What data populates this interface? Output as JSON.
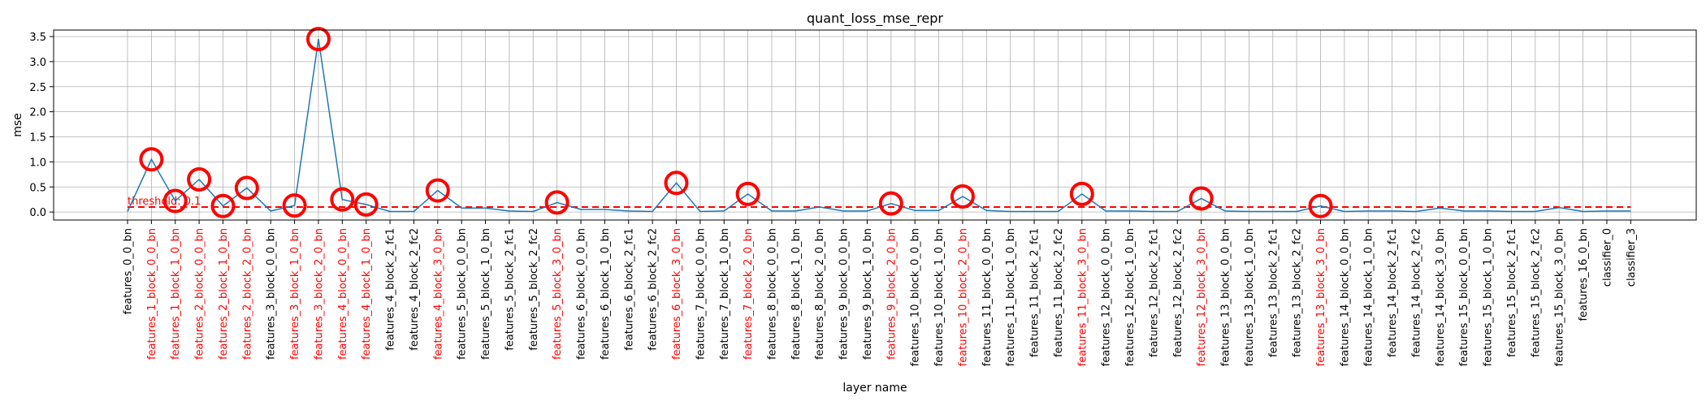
{
  "chart_data": {
    "type": "line",
    "title": "quant_loss_mse_repr",
    "xlabel": "layer name",
    "ylabel": "mse",
    "ylim": [
      -0.16,
      3.63
    ],
    "yticks": [
      0.0,
      0.5,
      1.0,
      1.5,
      2.0,
      2.5,
      3.0,
      3.5
    ],
    "ytick_labels": [
      "0.0",
      "0.5",
      "1.0",
      "1.5",
      "2.0",
      "2.5",
      "3.0",
      "3.5"
    ],
    "grid": true,
    "line_color": "#1f77b4",
    "highlight_color": "#ff0000",
    "threshold": {
      "value": 0.1,
      "label": "threshold: 0.1",
      "color": "#ff0000",
      "style": "dashed"
    },
    "categories": [
      "features_0_0_bn",
      "features_1_block_0_0_bn",
      "features_1_block_1_0_bn",
      "features_2_block_0_0_bn",
      "features_2_block_1_0_bn",
      "features_2_block_2_0_bn",
      "features_3_block_0_0_bn",
      "features_3_block_1_0_bn",
      "features_3_block_2_0_bn",
      "features_4_block_0_0_bn",
      "features_4_block_1_0_bn",
      "features_4_block_2_fc1",
      "features_4_block_2_fc2",
      "features_4_block_3_0_bn",
      "features_5_block_0_0_bn",
      "features_5_block_1_0_bn",
      "features_5_block_2_fc1",
      "features_5_block_2_fc2",
      "features_5_block_3_0_bn",
      "features_6_block_0_0_bn",
      "features_6_block_1_0_bn",
      "features_6_block_2_fc1",
      "features_6_block_2_fc2",
      "features_6_block_3_0_bn",
      "features_7_block_0_0_bn",
      "features_7_block_1_0_bn",
      "features_7_block_2_0_bn",
      "features_8_block_0_0_bn",
      "features_8_block_1_0_bn",
      "features_8_block_2_0_bn",
      "features_9_block_0_0_bn",
      "features_9_block_1_0_bn",
      "features_9_block_2_0_bn",
      "features_10_block_0_0_bn",
      "features_10_block_1_0_bn",
      "features_10_block_2_0_bn",
      "features_11_block_0_0_bn",
      "features_11_block_1_0_bn",
      "features_11_block_2_fc1",
      "features_11_block_2_fc2",
      "features_11_block_3_0_bn",
      "features_12_block_0_0_bn",
      "features_12_block_1_0_bn",
      "features_12_block_2_fc1",
      "features_12_block_2_fc2",
      "features_12_block_3_0_bn",
      "features_13_block_0_0_bn",
      "features_13_block_1_0_bn",
      "features_13_block_2_fc1",
      "features_13_block_2_fc2",
      "features_13_block_3_0_bn",
      "features_14_block_0_0_bn",
      "features_14_block_1_0_bn",
      "features_14_block_2_fc1",
      "features_14_block_2_fc2",
      "features_14_block_3_0_bn",
      "features_15_block_0_0_bn",
      "features_15_block_1_0_bn",
      "features_15_block_2_fc1",
      "features_15_block_2_fc2",
      "features_15_block_3_0_bn",
      "features_16_0_bn",
      "classifier_0",
      "classifier_3"
    ],
    "values": [
      0.01,
      1.05,
      0.22,
      0.65,
      0.12,
      0.48,
      0.02,
      0.13,
      3.45,
      0.25,
      0.15,
      0.01,
      0.01,
      0.43,
      0.08,
      0.08,
      0.02,
      0.01,
      0.19,
      0.05,
      0.05,
      0.02,
      0.01,
      0.58,
      0.01,
      0.02,
      0.36,
      0.02,
      0.02,
      0.1,
      0.02,
      0.02,
      0.17,
      0.03,
      0.03,
      0.31,
      0.03,
      0.01,
      0.01,
      0.01,
      0.36,
      0.02,
      0.02,
      0.01,
      0.01,
      0.27,
      0.02,
      0.01,
      0.01,
      0.01,
      0.12,
      0.01,
      0.02,
      0.02,
      0.01,
      0.08,
      0.02,
      0.02,
      0.01,
      0.01,
      0.09,
      0.01,
      0.02,
      0.02
    ],
    "highlighted": [
      "features_1_block_0_0_bn",
      "features_1_block_1_0_bn",
      "features_2_block_0_0_bn",
      "features_2_block_1_0_bn",
      "features_2_block_2_0_bn",
      "features_3_block_1_0_bn",
      "features_3_block_2_0_bn",
      "features_4_block_0_0_bn",
      "features_4_block_1_0_bn",
      "features_4_block_3_0_bn",
      "features_5_block_3_0_bn",
      "features_6_block_3_0_bn",
      "features_7_block_2_0_bn",
      "features_9_block_2_0_bn",
      "features_10_block_2_0_bn",
      "features_11_block_3_0_bn",
      "features_12_block_3_0_bn",
      "features_13_block_3_0_bn"
    ]
  }
}
